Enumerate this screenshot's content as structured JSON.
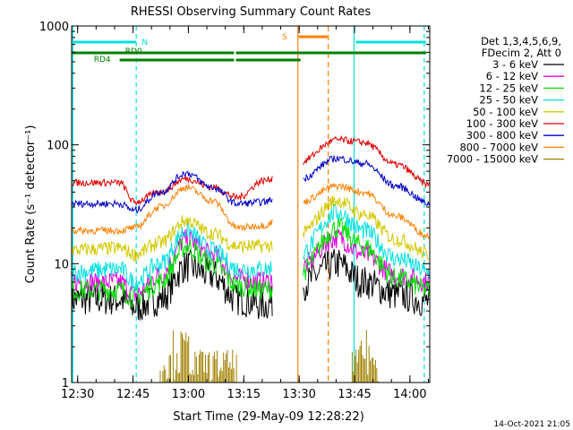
{
  "chart_data": {
    "type": "line",
    "title": "RHESSI Observing Summary Count Rates",
    "xlabel": "Start Time (29-May-09 12:28:22)",
    "ylabel": "Count Rate (s⁻¹ detector⁻¹)",
    "footer": "14-Oct-2021 21:05",
    "y_scale": "log",
    "ylim": [
      1,
      1000
    ],
    "xlim_minutes": [
      0,
      97
    ],
    "x_tick_labels": [
      "12:30",
      "12:45",
      "13:00",
      "13:15",
      "13:30",
      "13:45",
      "14:00"
    ],
    "x_ticks_minutes": [
      1.63,
      16.63,
      31.63,
      46.63,
      61.63,
      76.63,
      91.63
    ],
    "y_tick_labels": [
      "1",
      "10",
      "100",
      "1000"
    ],
    "y_ticks": [
      1,
      10,
      100,
      1000
    ],
    "legend_header": [
      "Det 1,3,4,5,6,9,",
      "FDecim 2, Att 0"
    ],
    "legend_position": "right",
    "series": [
      {
        "name": "3 - 6 keV",
        "color": "#000000",
        "values": [
          5,
          5,
          4.3,
          5,
          9.5,
          8,
          5,
          4.5,
          6.5,
          10,
          7,
          5.5,
          4.8
        ]
      },
      {
        "name": "6 - 12 keV",
        "color": "#e000e0",
        "values": [
          7,
          7,
          5.5,
          8,
          16,
          12,
          7.5,
          7,
          9,
          16.5,
          12,
          8,
          7
        ]
      },
      {
        "name": "12 - 25 keV",
        "color": "#00e000",
        "values": [
          6,
          6,
          5.2,
          7,
          14,
          10,
          6.5,
          6,
          8,
          20,
          14,
          7.5,
          6
        ]
      },
      {
        "name": "25 - 50 keV",
        "color": "#00e0e0",
        "values": [
          8.5,
          9,
          7,
          10,
          19,
          13,
          9,
          9,
          11.5,
          27,
          19,
          11,
          8.5
        ]
      },
      {
        "name": "50 - 100 keV",
        "color": "#d2c800",
        "values": [
          13,
          13.5,
          12,
          15,
          23,
          18,
          14,
          14,
          17,
          34,
          26,
          16,
          12
        ]
      },
      {
        "name": "100 - 300 keV",
        "color": "#e00000",
        "values": [
          48,
          48,
          33,
          40,
          52,
          44,
          36,
          50,
          70,
          110,
          105,
          68,
          46
        ]
      },
      {
        "name": "300 - 800 keV",
        "color": "#0000c8",
        "values": [
          32,
          32,
          28,
          40,
          58,
          44,
          32,
          33,
          50,
          77,
          70,
          45,
          32
        ]
      },
      {
        "name": "800 - 7000 keV",
        "color": "#ff8000",
        "values": [
          19,
          19,
          20,
          30,
          44,
          34,
          20,
          21,
          32,
          45,
          40,
          25,
          17
        ]
      },
      {
        "name": "7000 - 15000 keV",
        "color": "#a08000",
        "values": [
          1,
          1,
          1,
          1,
          2.6,
          1.5,
          1,
          1,
          1,
          1,
          2,
          1,
          1
        ]
      }
    ],
    "x_minutes": [
      0,
      13,
      17,
      24,
      31,
      38,
      45,
      52,
      61,
      72,
      79,
      88,
      97
    ],
    "flags": [
      {
        "label": "N",
        "color": "#00e0e0"
      },
      {
        "label": "RD0",
        "color": "#008000"
      },
      {
        "label": "RD4",
        "color": "#008000"
      },
      {
        "label": "S",
        "color": "#ff8000"
      }
    ]
  }
}
